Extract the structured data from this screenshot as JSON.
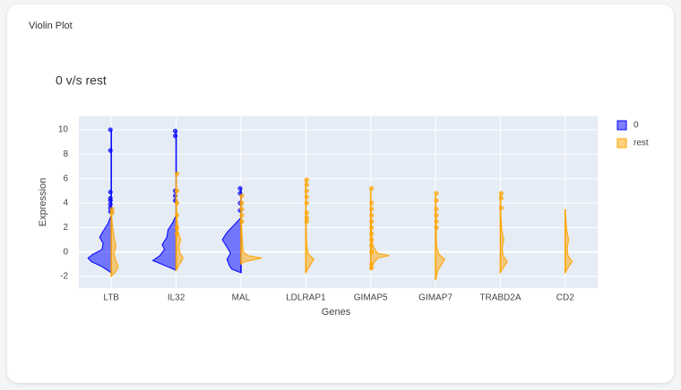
{
  "header": {
    "title": "Violin Plot"
  },
  "chart_data": {
    "type": "violin",
    "title": "0 v/s rest",
    "x_label": "Genes",
    "y_label": "Expression",
    "categories": [
      "LTB",
      "IL32",
      "MAL",
      "LDLRAP1",
      "GIMAP5",
      "GIMAP7",
      "TRABD2A",
      "CD2"
    ],
    "ylim": [
      -2.95,
      11.1
    ],
    "yticks": [
      -2,
      0,
      2,
      4,
      6,
      8,
      10
    ],
    "grid": true,
    "legend": "right",
    "series": [
      {
        "name": "0",
        "color": "#0000ff",
        "side": "negative",
        "values": [
          {
            "kde": [
              [
                -1.7,
                0
              ],
              [
                -1.2,
                0.4
              ],
              [
                -0.8,
                0.85
              ],
              [
                -0.5,
                1
              ],
              [
                -0.2,
                0.8
              ],
              [
                0.2,
                0.4
              ],
              [
                0.7,
                0.35
              ],
              [
                1.2,
                0.5
              ],
              [
                1.7,
                0.35
              ],
              [
                2.3,
                0.15
              ],
              [
                3,
                0
              ]
            ],
            "points": [
              10.0,
              8.3,
              4.9,
              4.4,
              4.2,
              3.9,
              3.6,
              3.3
            ]
          },
          {
            "kde": [
              [
                -1.5,
                0
              ],
              [
                -1.1,
                0.5
              ],
              [
                -0.7,
                1
              ],
              [
                -0.3,
                0.7
              ],
              [
                0.2,
                0.5
              ],
              [
                0.6,
                0.6
              ],
              [
                1.2,
                0.4
              ],
              [
                1.8,
                0.35
              ],
              [
                2.4,
                0.15
              ],
              [
                3,
                0
              ]
            ],
            "points": [
              9.9,
              9.5,
              5.0,
              4.6,
              4.2
            ]
          },
          {
            "kde": [
              [
                -1.7,
                0
              ],
              [
                -1.4,
                0.4
              ],
              [
                -1.1,
                0.5
              ],
              [
                -0.6,
                0.6
              ],
              [
                -0.1,
                0.45
              ],
              [
                0.4,
                0.6
              ],
              [
                1,
                0.8
              ],
              [
                1.6,
                0.6
              ],
              [
                2.2,
                0.3
              ],
              [
                2.8,
                0
              ]
            ],
            "points": [
              5.2,
              4.8,
              4.0,
              3.4
            ]
          },
          null,
          null,
          null,
          null,
          null
        ]
      },
      {
        "name": "rest",
        "color": "#ffa500",
        "side": "positive",
        "values": [
          {
            "kde": [
              [
                -2,
                0
              ],
              [
                -1.6,
                0.2
              ],
              [
                -1.2,
                0.3
              ],
              [
                -0.7,
                0.2
              ],
              [
                -0.2,
                0.12
              ],
              [
                0.5,
                0.2
              ],
              [
                1.2,
                0.12
              ],
              [
                2.2,
                0.05
              ],
              [
                3.5,
                0
              ]
            ],
            "points": [
              3.5,
              3.2
            ]
          },
          {
            "kde": [
              [
                -1.5,
                0
              ],
              [
                -1,
                0.15
              ],
              [
                -0.5,
                0.3
              ],
              [
                0,
                0.15
              ],
              [
                0.5,
                0.12
              ],
              [
                1,
                0.2
              ],
              [
                1.6,
                0.08
              ],
              [
                3,
                0.03
              ],
              [
                6.3,
                0
              ]
            ],
            "points": [
              6.4,
              5.0,
              4.0,
              3.0,
              2.0,
              1.5
            ]
          },
          {
            "kde": [
              [
                -1,
                0
              ],
              [
                -0.8,
                0.15
              ],
              [
                -0.5,
                0.9
              ],
              [
                -0.3,
                0.3
              ],
              [
                0,
                0.1
              ],
              [
                1,
                0.06
              ],
              [
                2,
                0.03
              ],
              [
                3,
                0
              ]
            ],
            "points": [
              4.6,
              4.0,
              3.5,
              3.0,
              2.5
            ]
          },
          {
            "kde": [
              [
                -1.7,
                0
              ],
              [
                -1.2,
                0.15
              ],
              [
                -0.6,
                0.35
              ],
              [
                -0.2,
                0.12
              ],
              [
                0.5,
                0.04
              ],
              [
                2,
                0.02
              ],
              [
                6,
                0
              ]
            ],
            "points": [
              5.9,
              5.5,
              5.0,
              4.5,
              4.0,
              3.2,
              2.8,
              2.5
            ]
          },
          {
            "kde": [
              [
                -1.5,
                0
              ],
              [
                -1,
                0.1
              ],
              [
                -0.5,
                0.3
              ],
              [
                -0.3,
                0.8
              ],
              [
                -0.1,
                0.3
              ],
              [
                0.5,
                0.08
              ],
              [
                2,
                0.03
              ],
              [
                5.2,
                0
              ]
            ],
            "points": [
              5.2,
              4.0,
              3.5,
              3.0,
              2.5,
              2.0,
              1.5,
              1.0,
              0.5,
              0,
              -1.0,
              -1.3
            ]
          },
          {
            "kde": [
              [
                -2.3,
                0
              ],
              [
                -1.5,
                0.1
              ],
              [
                -0.6,
                0.4
              ],
              [
                -0.2,
                0.15
              ],
              [
                0.5,
                0.04
              ],
              [
                2,
                0.03
              ],
              [
                4.7,
                0
              ]
            ],
            "points": [
              4.8,
              4.2,
              3.5,
              3.0,
              2.5,
              2.0
            ]
          },
          {
            "kde": [
              [
                -1.7,
                0
              ],
              [
                -1.2,
                0.15
              ],
              [
                -0.8,
                0.3
              ],
              [
                -0.3,
                0.12
              ],
              [
                0.3,
                0.08
              ],
              [
                1,
                0.15
              ],
              [
                1.8,
                0.06
              ],
              [
                3,
                0.02
              ],
              [
                4.8,
                0
              ]
            ],
            "points": [
              4.8,
              4.4,
              3.6
            ]
          },
          {
            "kde": [
              [
                -1.7,
                0
              ],
              [
                -1.2,
                0.15
              ],
              [
                -0.8,
                0.3
              ],
              [
                -0.3,
                0.12
              ],
              [
                0.3,
                0.08
              ],
              [
                1,
                0.15
              ],
              [
                1.8,
                0.06
              ],
              [
                2.7,
                0.03
              ],
              [
                3.5,
                0
              ]
            ],
            "points": []
          }
        ]
      }
    ]
  }
}
